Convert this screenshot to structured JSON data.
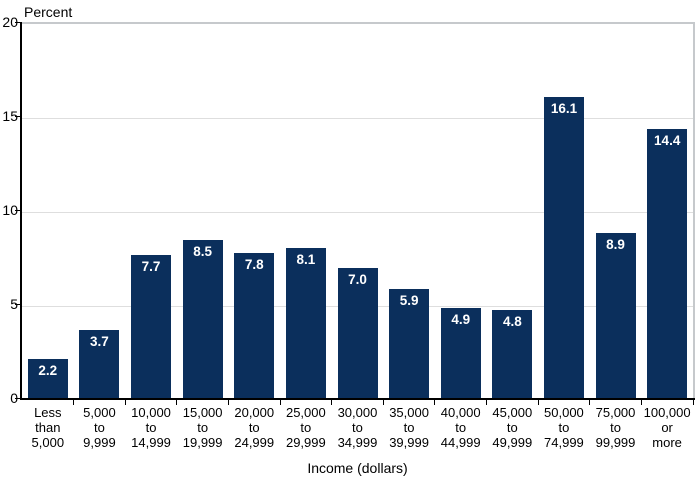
{
  "chart_data": {
    "type": "bar",
    "title": "",
    "y_axis_title": "Percent",
    "x_axis_title": "Income (dollars)",
    "ylim": [
      0,
      20
    ],
    "yticks": [
      0,
      5,
      10,
      15,
      20
    ],
    "grid": true,
    "legend_position": "none",
    "bar_color": "#0b2f5c",
    "value_label_color": "#ffffff",
    "categories": [
      [
        "Less",
        "than",
        "5,000"
      ],
      [
        "5,000",
        "to",
        "9,999"
      ],
      [
        "10,000",
        "to",
        "14,999"
      ],
      [
        "15,000",
        "to",
        "19,999"
      ],
      [
        "20,000",
        "to",
        "24,999"
      ],
      [
        "25,000",
        "to",
        "29,999"
      ],
      [
        "30,000",
        "to",
        "34,999"
      ],
      [
        "35,000",
        "to",
        "39,999"
      ],
      [
        "40,000",
        "to",
        "44,999"
      ],
      [
        "45,000",
        "to",
        "49,999"
      ],
      [
        "50,000",
        "to",
        "74,999"
      ],
      [
        "75,000",
        "to",
        "99,999"
      ],
      [
        "100,000",
        "or",
        "more"
      ]
    ],
    "values": [
      2.2,
      3.7,
      7.7,
      8.5,
      7.8,
      8.1,
      7.0,
      5.9,
      4.9,
      4.8,
      16.1,
      8.9,
      14.4
    ],
    "value_labels": [
      "2.2",
      "3.7",
      "7.7",
      "8.5",
      "7.8",
      "8.1",
      "7.0",
      "5.9",
      "4.9",
      "4.8",
      "16.1",
      "8.9",
      "14.4"
    ]
  }
}
